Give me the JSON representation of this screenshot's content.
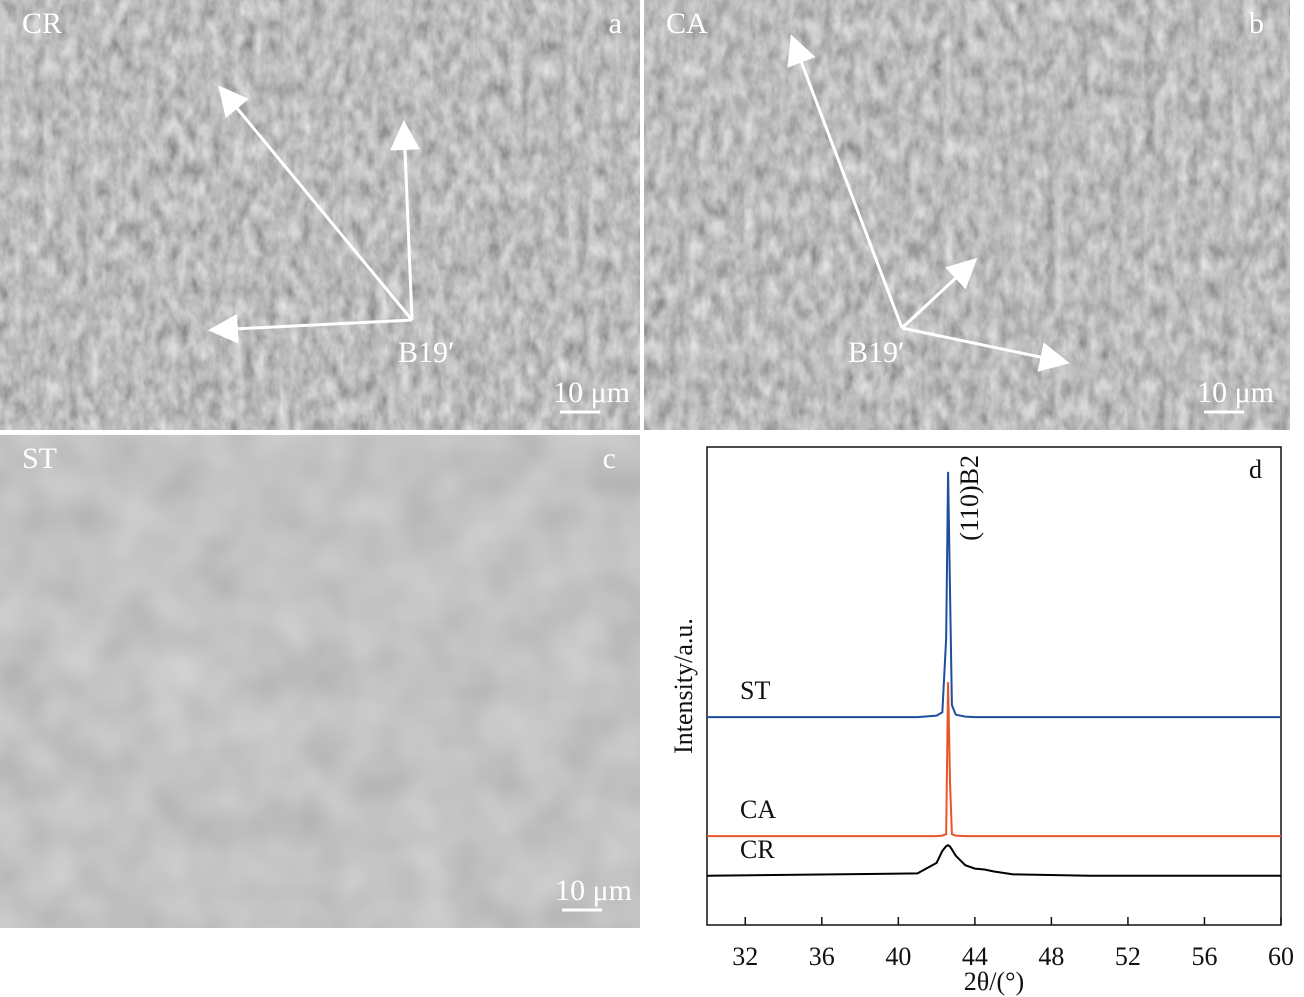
{
  "panels": [
    {
      "tag": "CR",
      "letter": "a",
      "phase": "B19′",
      "scale": "10 μm"
    },
    {
      "tag": "CA",
      "letter": "b",
      "phase": "B19′",
      "scale": "10 μm"
    },
    {
      "tag": "ST",
      "letter": "c",
      "scale": "10 μm"
    }
  ],
  "chart_data": {
    "type": "line",
    "letter": "d",
    "xlabel": "2θ/(°)",
    "ylabel": "Intensity/a.u.",
    "annotation": "(110)B2",
    "x": [
      30,
      41,
      42,
      42.3,
      42.5,
      42.6,
      42.7,
      42.8,
      43,
      43.5,
      44,
      44.5,
      45,
      46,
      50,
      60
    ],
    "series": [
      {
        "name": "ST",
        "color": "#1f4e9c",
        "values": [
          43.5,
          43.5,
          43.8,
          44.5,
          60,
          94.8,
          70,
          46,
          44,
          43.6,
          43.5,
          43.5,
          43.5,
          43.5,
          43.5,
          43.5
        ]
      },
      {
        "name": "CA",
        "color": "#e8552a",
        "values": [
          18.6,
          18.6,
          18.6,
          18.7,
          19,
          50.8,
          30,
          19,
          18.7,
          18.6,
          18.6,
          18.6,
          18.6,
          18.6,
          18.6,
          18.6
        ]
      },
      {
        "name": "CR",
        "color": "#000000",
        "values": [
          10.3,
          10.8,
          13,
          15.5,
          16.5,
          16.7,
          16.4,
          15.8,
          14.5,
          12.5,
          11.8,
          11.6,
          11.2,
          10.6,
          10.3,
          10.3
        ]
      }
    ],
    "xlim": [
      30,
      60
    ],
    "xticks": [
      32,
      36,
      40,
      44,
      48,
      52,
      56,
      60
    ],
    "ylim": [
      0,
      100
    ]
  }
}
